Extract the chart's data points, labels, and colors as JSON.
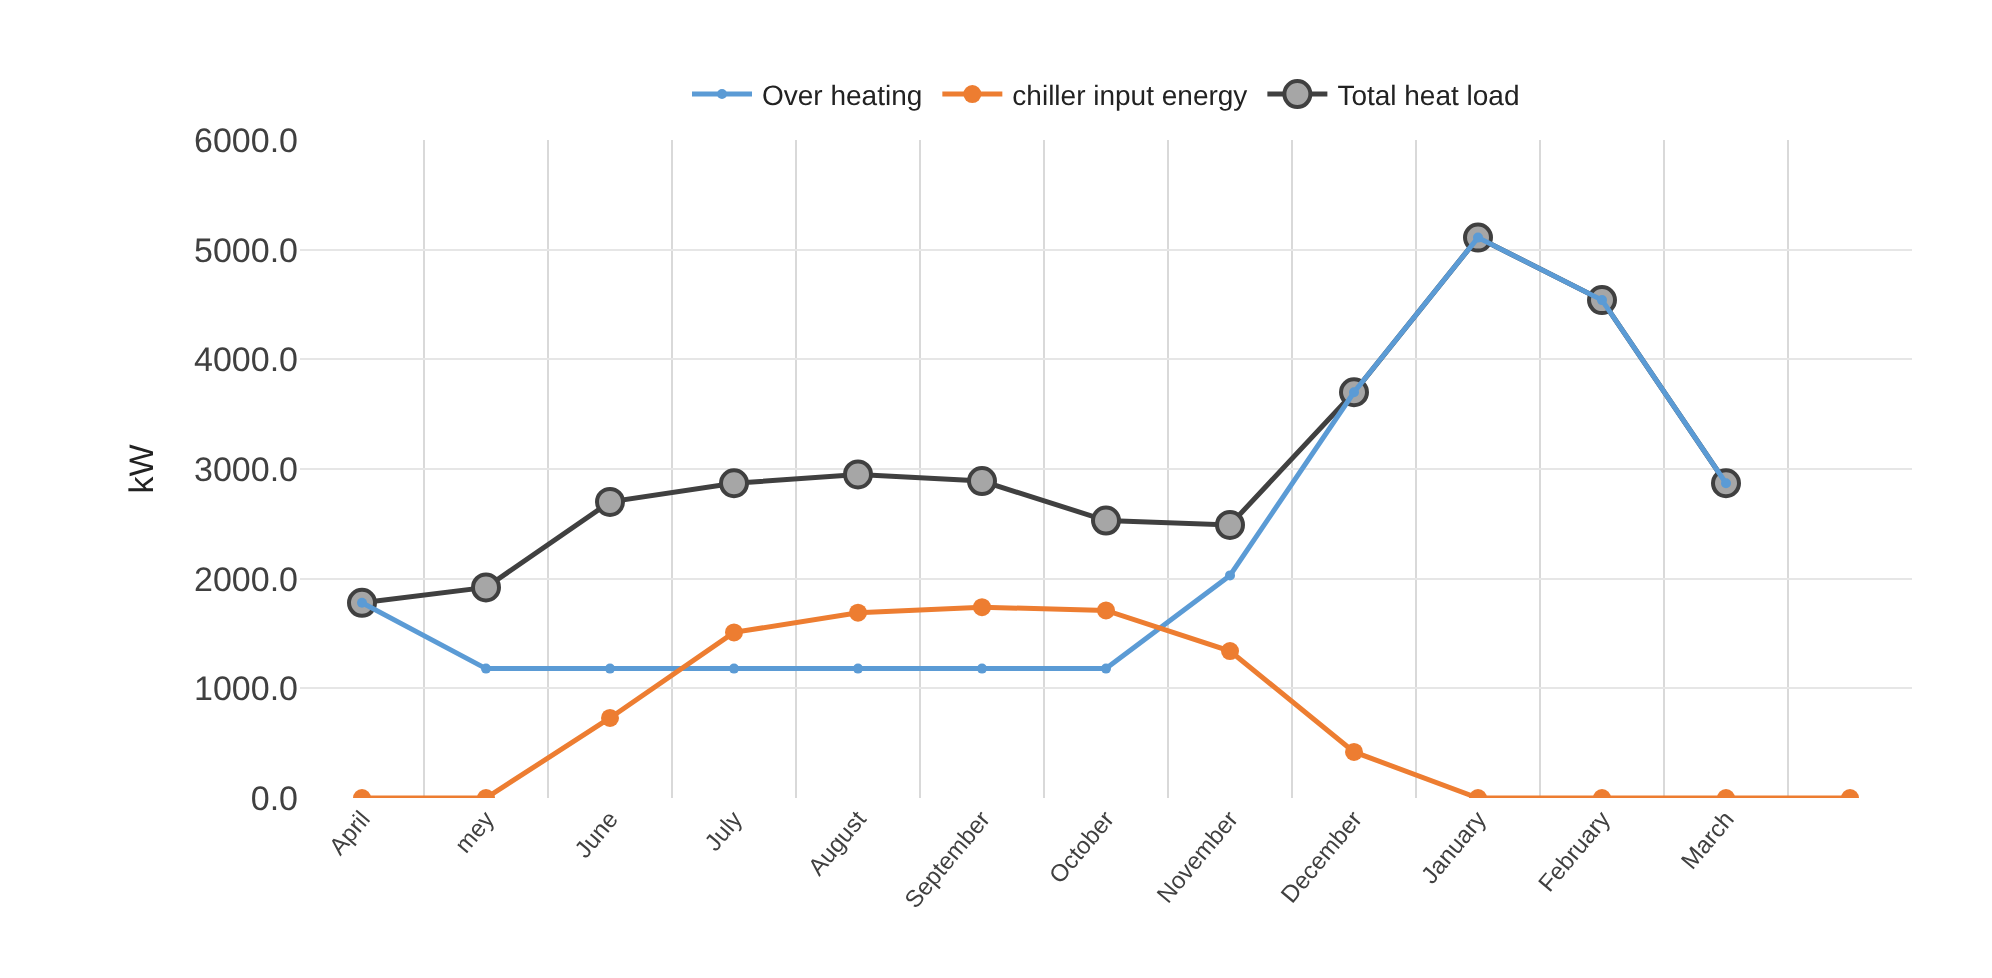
{
  "chart_data": {
    "type": "line",
    "ylabel": "kW",
    "categories": [
      "April",
      "mey",
      "June",
      "July",
      "August",
      "September",
      "October",
      "November",
      "December",
      "January",
      "February",
      "March",
      null
    ],
    "series": [
      {
        "name": "Total heat load",
        "color": "#404040",
        "values": [
          1780,
          1920,
          2700,
          2870,
          2950,
          2890,
          2530,
          2490,
          3700,
          5110,
          4540,
          2870,
          null
        ]
      },
      {
        "name": "Over heating",
        "color": "#5b9bd5",
        "values": [
          1780,
          1180,
          1180,
          1180,
          1180,
          1180,
          1180,
          2030,
          3700,
          5110,
          4540,
          2870,
          null
        ]
      },
      {
        "name": "chiller input energy",
        "color": "#ed7d31",
        "values": [
          0,
          0,
          730,
          1510,
          1690,
          1740,
          1710,
          1340,
          420,
          0,
          0,
          0,
          0
        ]
      }
    ],
    "ylim": [
      0,
      6000
    ],
    "yticks": [
      {
        "value": 0,
        "label": "0.0"
      },
      {
        "value": 1000,
        "label": "1000.0"
      },
      {
        "value": 2000,
        "label": "2000.0"
      },
      {
        "value": 3000,
        "label": "3000.0"
      },
      {
        "value": 4000,
        "label": "4000.0"
      },
      {
        "value": 5000,
        "label": "5000.0"
      },
      {
        "value": 6000,
        "label": "6000.0"
      }
    ],
    "grid": true,
    "legend": "top",
    "marker": "circle",
    "line_style": "solid"
  }
}
